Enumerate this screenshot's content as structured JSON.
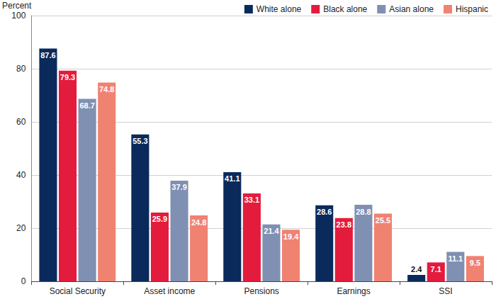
{
  "chart_data": {
    "type": "bar",
    "y_label": "Percent",
    "categories": [
      "Social Security",
      "Asset income",
      "Pensions",
      "Earnings",
      "SSI"
    ],
    "series": [
      {
        "name": "White alone",
        "color": "#0a2a5c",
        "values": [
          87.6,
          55.3,
          41.1,
          28.6,
          2.4
        ]
      },
      {
        "name": "Black alone",
        "color": "#e31c3d",
        "values": [
          79.3,
          25.9,
          33.1,
          23.8,
          7.1
        ]
      },
      {
        "name": "Asian alone",
        "color": "#8090b2",
        "values": [
          68.7,
          37.9,
          21.4,
          28.8,
          11.1
        ]
      },
      {
        "name": "Hispanic",
        "color": "#f08272",
        "values": [
          74.8,
          24.8,
          19.4,
          25.5,
          9.5
        ]
      }
    ],
    "ylim": [
      0,
      100
    ],
    "yticks": [
      0,
      20,
      40,
      60,
      80,
      100
    ],
    "grid": true,
    "legend": "top-right",
    "data_labels": true
  }
}
